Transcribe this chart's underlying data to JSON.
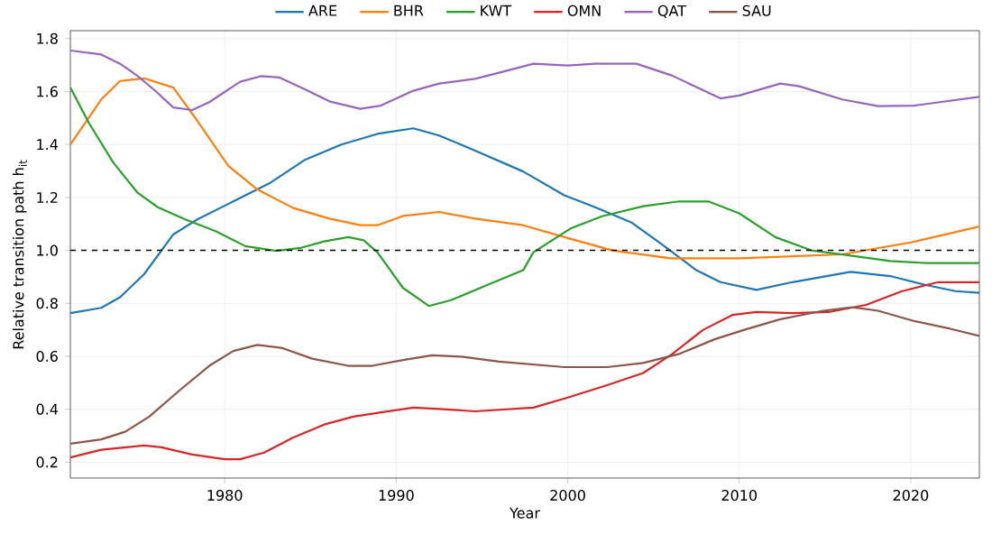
{
  "chart_data": {
    "type": "line",
    "xlabel": "Year",
    "ylabel": "Relative transition path h$_{it}$",
    "xlim": [
      1971,
      2024
    ],
    "ylim": [
      0.14,
      1.83
    ],
    "xticks": [
      1980,
      1990,
      2000,
      2010,
      2020
    ],
    "yticks": [
      0.2,
      0.4,
      0.6,
      0.8,
      {
        "value": 1,
        "label": "1.0"
      },
      1.2,
      1.4,
      1.6,
      1.8
    ],
    "grid": true,
    "legend": "top",
    "line_style": "solid",
    "marker": "none",
    "ref_lines": [
      {
        "axis": "y",
        "value": 1.0,
        "color": "#000000",
        "line_style": "dashed"
      }
    ],
    "series": [
      {
        "name": "ARE",
        "color": "#1f77b4",
        "x": [
          1971,
          1972.8,
          1973.9,
          1975.3,
          1977,
          1978.4,
          1980.5,
          1982.6,
          1984.7,
          1986.8,
          1988.9,
          1991,
          1992.5,
          1994.6,
          1997.4,
          1999.8,
          2001.6,
          2003.7,
          2005.4,
          2007.5,
          2008.9,
          2011,
          2013.1,
          2016.5,
          2018.8,
          2020.9,
          2022.6,
          2024
        ],
        "values": [
          0.763,
          0.783,
          0.823,
          0.91,
          1.06,
          1.117,
          1.185,
          1.253,
          1.343,
          1.4,
          1.44,
          1.461,
          1.434,
          1.377,
          1.298,
          1.208,
          1.163,
          1.106,
          1.027,
          0.925,
          0.88,
          0.851,
          0.88,
          0.919,
          0.903,
          0.869,
          0.846,
          0.84
        ]
      },
      {
        "name": "BHR",
        "color": "#ff7f0e",
        "x": [
          1971,
          1972.8,
          1973.9,
          1975.3,
          1977,
          1978.4,
          1980.2,
          1981.9,
          1984,
          1986.1,
          1987.9,
          1988.9,
          1990.4,
          1992.5,
          1994.6,
          1997.4,
          1999.8,
          2002.6,
          2006,
          2010,
          2016,
          2020,
          2024
        ],
        "values": [
          1.4,
          1.57,
          1.64,
          1.65,
          1.615,
          1.49,
          1.32,
          1.23,
          1.16,
          1.12,
          1.095,
          1.095,
          1.13,
          1.145,
          1.12,
          1.095,
          1.05,
          1.0,
          0.97,
          0.97,
          0.985,
          1.03,
          1.09
        ]
      },
      {
        "name": "KWT",
        "color": "#2ca02c",
        "x": [
          1971,
          1972.1,
          1973.5,
          1974.9,
          1976.1,
          1977.7,
          1979.5,
          1981.2,
          1983,
          1984.4,
          1985.8,
          1987.2,
          1988.1,
          1988.9,
          1990.4,
          1991.9,
          1993.2,
          1995.3,
          1997.4,
          1998,
          2000.2,
          2002,
          2004.4,
          2006.5,
          2008.2,
          2010,
          2012.1,
          2014.2,
          2016.3,
          2018.8,
          2020.9,
          2024
        ],
        "values": [
          1.615,
          1.479,
          1.332,
          1.219,
          1.163,
          1.117,
          1.072,
          1.016,
          0.998,
          1.009,
          1.034,
          1.05,
          1.038,
          0.993,
          0.858,
          0.79,
          0.812,
          0.869,
          0.925,
          0.993,
          1.084,
          1.129,
          1.167,
          1.185,
          1.185,
          1.14,
          1.05,
          1.0,
          0.982,
          0.96,
          0.952,
          0.952
        ]
      },
      {
        "name": "OMN",
        "color": "#d62728",
        "x": [
          1971,
          1972.8,
          1975.3,
          1976.3,
          1978.1,
          1980,
          1980.9,
          1982.3,
          1984,
          1985.8,
          1987.5,
          1989.3,
          1991,
          1992.5,
          1994.6,
          1998,
          2000,
          2002.3,
          2004.4,
          2006.1,
          2007.9,
          2009.6,
          2011,
          2013.1,
          2015.2,
          2017.4,
          2019.5,
          2021.6,
          2024
        ],
        "values": [
          0.218,
          0.247,
          0.263,
          0.256,
          0.229,
          0.211,
          0.211,
          0.236,
          0.293,
          0.342,
          0.372,
          0.39,
          0.406,
          0.401,
          0.392,
          0.406,
          0.444,
          0.491,
          0.537,
          0.609,
          0.7,
          0.756,
          0.767,
          0.763,
          0.767,
          0.794,
          0.846,
          0.88,
          0.88
        ]
      },
      {
        "name": "QAT",
        "color": "#9467bd",
        "x": [
          1971,
          1972.8,
          1973.9,
          1974.9,
          1976,
          1977,
          1978.1,
          1979.1,
          1980.9,
          1982.1,
          1983.2,
          1984.7,
          1986.1,
          1987.9,
          1989.1,
          1991,
          1992.5,
          1994.6,
          1996.3,
          1998,
          2000,
          2001.6,
          2004,
          2006.1,
          2008.9,
          2010,
          2012.4,
          2013.5,
          2016,
          2018.1,
          2020.2,
          2024
        ],
        "values": [
          1.755,
          1.74,
          1.705,
          1.66,
          1.6,
          1.54,
          1.53,
          1.56,
          1.637,
          1.658,
          1.653,
          1.608,
          1.563,
          1.535,
          1.547,
          1.603,
          1.63,
          1.648,
          1.676,
          1.705,
          1.698,
          1.705,
          1.705,
          1.66,
          1.574,
          1.585,
          1.63,
          1.62,
          1.57,
          1.545,
          1.547,
          1.58
        ]
      },
      {
        "name": "SAU",
        "color": "#8c564b",
        "x": [
          1971,
          1972.8,
          1974.2,
          1975.6,
          1977.4,
          1979.1,
          1980.5,
          1981.9,
          1983.3,
          1985.1,
          1987.2,
          1988.6,
          1990.4,
          1992.1,
          1993.9,
          1996,
          1999.8,
          2002.3,
          2004.4,
          2006.5,
          2008.6,
          2010.3,
          2012.4,
          2014.9,
          2016.6,
          2018.1,
          2020.2,
          2022.3,
          2024
        ],
        "values": [
          0.27,
          0.286,
          0.315,
          0.372,
          0.473,
          0.564,
          0.62,
          0.643,
          0.632,
          0.591,
          0.564,
          0.564,
          0.586,
          0.604,
          0.598,
          0.58,
          0.559,
          0.559,
          0.575,
          0.609,
          0.665,
          0.7,
          0.74,
          0.772,
          0.785,
          0.772,
          0.733,
          0.704,
          0.677
        ]
      }
    ]
  }
}
